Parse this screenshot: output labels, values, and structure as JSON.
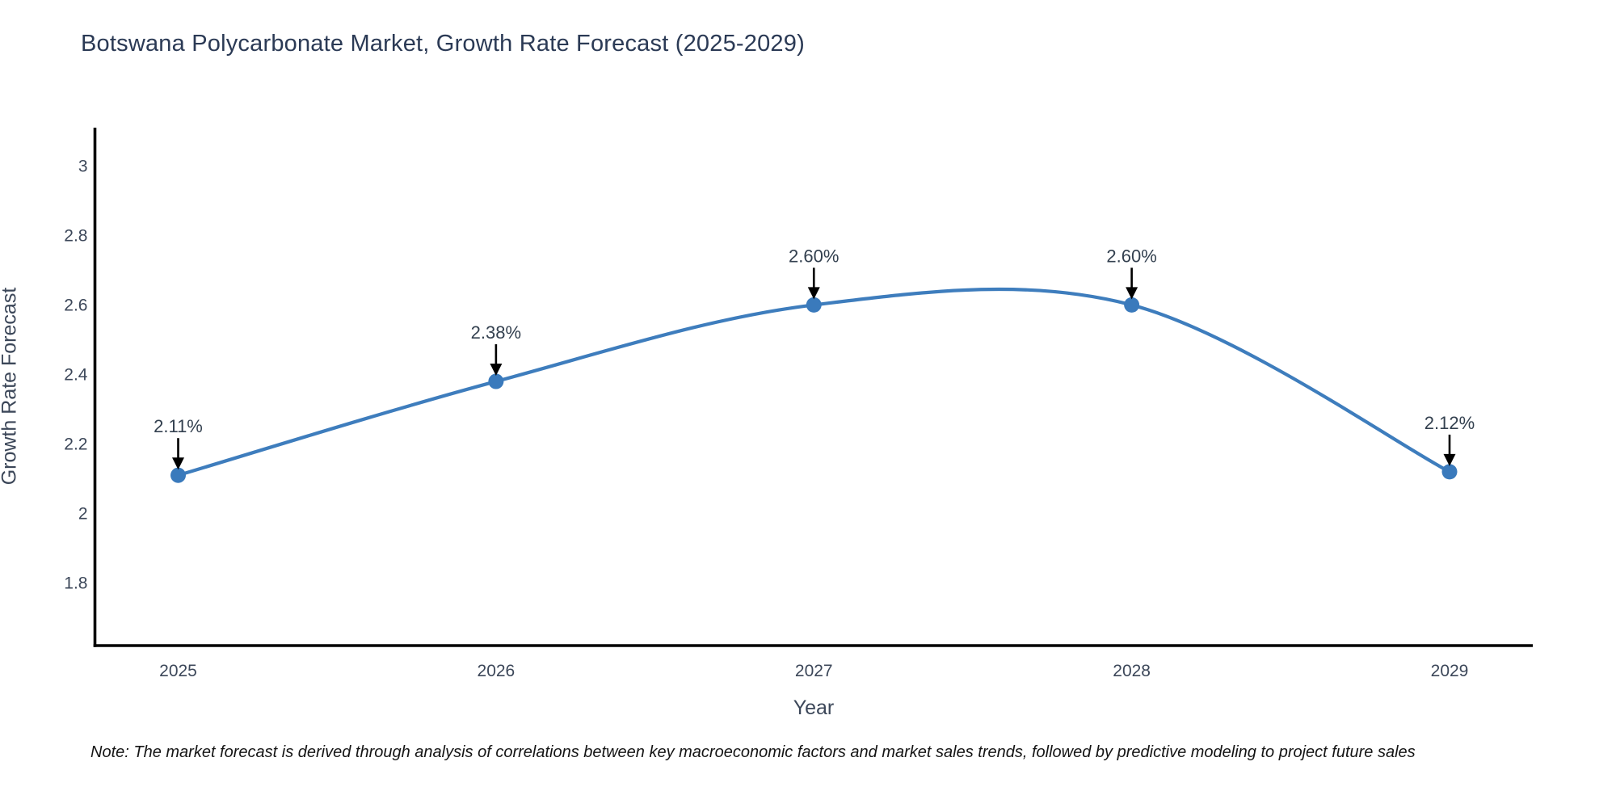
{
  "chart": {
    "title": "Botswana Polycarbonate Market, Growth Rate Forecast (2025-2029)",
    "xlabel": "Year",
    "ylabel": "Growth Rate Forecast",
    "note": "Note: The market forecast is derived through analysis of correlations between key macroeconomic factors and market sales trends, followed by predictive modeling to project future sales"
  },
  "chart_data": {
    "type": "line",
    "title": "Botswana Polycarbonate Market, Growth Rate Forecast (2025-2029)",
    "xlabel": "Year",
    "ylabel": "Growth Rate Forecast",
    "x": [
      2025,
      2026,
      2027,
      2028,
      2029
    ],
    "categories": [
      "2025",
      "2026",
      "2027",
      "2028",
      "2029"
    ],
    "series": [
      {
        "name": "Growth Rate Forecast",
        "values": [
          2.11,
          2.38,
          2.6,
          2.6,
          2.12
        ]
      }
    ],
    "point_labels": [
      "2.11%",
      "2.38%",
      "2.60%",
      "2.60%",
      "2.12%"
    ],
    "line_shape": "spline",
    "grid": false,
    "legend": "none",
    "yticks": [
      3,
      2.8,
      2.6,
      2.4,
      2.2,
      2,
      1.8
    ],
    "ytick_labels": [
      "3",
      "2.8",
      "2.6",
      "2.4",
      "2.2",
      "2",
      "1.8"
    ],
    "ylim": [
      1.62,
      3.11
    ],
    "colors": {
      "line": "#3e7dbd",
      "marker": "#3a7abc",
      "axis": "#000000",
      "tick_text": "#3c4759",
      "annotation_text": "#33404f",
      "annotation_arrow": "#000000",
      "title_text": "#2b3a55",
      "note_text": "#151515"
    }
  }
}
